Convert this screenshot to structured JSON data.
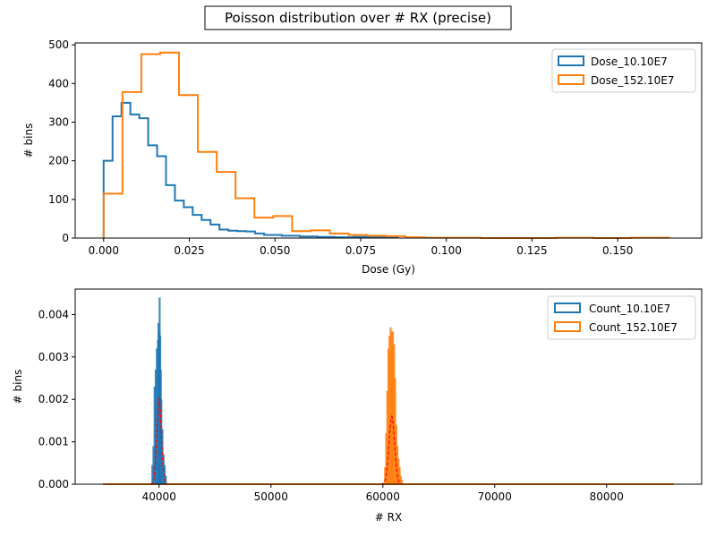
{
  "figure": {
    "suptitle": "Poisson distribution over # RX (precise)"
  },
  "colors": {
    "blue": "#1f77b4",
    "orange": "#ff7f0e",
    "fit": "#ff0000"
  },
  "chart_data": [
    {
      "type": "step-histogram",
      "title": "",
      "xlabel": "Dose (Gy)",
      "ylabel": "# bins",
      "xlim": [
        -0.0083,
        0.1745
      ],
      "ylim": [
        0,
        505
      ],
      "xticks": [
        0.0,
        0.025,
        0.05,
        0.075,
        0.1,
        0.125,
        0.15
      ],
      "xtick_labels": [
        "0.000",
        "0.025",
        "0.050",
        "0.075",
        "0.100",
        "0.125",
        "0.150"
      ],
      "yticks": [
        0,
        100,
        200,
        300,
        400,
        500
      ],
      "ytick_labels": [
        "0",
        "100",
        "200",
        "300",
        "400",
        "500"
      ],
      "legend_position": "upper-right",
      "grid": false,
      "series": [
        {
          "name": "Dose_10.10E7",
          "color": "#1f77b4",
          "bin_edges": [
            0.0,
            0.0026,
            0.0052,
            0.0078,
            0.0104,
            0.013,
            0.0156,
            0.0182,
            0.0208,
            0.0234,
            0.026,
            0.0286,
            0.0312,
            0.0338,
            0.0364,
            0.039,
            0.0416,
            0.0442,
            0.0468,
            0.052,
            0.0572,
            0.0624,
            0.0676,
            0.0728,
            0.078,
            0.0858
          ],
          "counts": [
            200,
            315,
            350,
            320,
            310,
            240,
            212,
            137,
            97,
            80,
            60,
            47,
            35,
            22,
            19,
            18,
            17,
            12,
            8,
            6,
            4,
            3,
            2,
            3,
            2
          ]
        },
        {
          "name": "Dose_152.10E7",
          "color": "#ff7f0e",
          "bin_edges": [
            0.0,
            0.0055,
            0.011,
            0.0165,
            0.022,
            0.0275,
            0.033,
            0.0385,
            0.044,
            0.0495,
            0.055,
            0.0605,
            0.066,
            0.0715,
            0.077,
            0.0825,
            0.088,
            0.0935,
            0.099,
            0.11,
            0.121,
            0.132,
            0.143,
            0.154,
            0.165
          ],
          "counts": [
            115,
            378,
            476,
            480,
            370,
            223,
            171,
            103,
            53,
            57,
            18,
            20,
            12,
            8,
            6,
            5,
            2,
            1,
            1,
            0,
            0,
            1,
            0,
            1
          ]
        }
      ]
    },
    {
      "type": "histogram-with-fit",
      "title": "",
      "xlabel": "# RX",
      "ylabel": "# bins",
      "xlim": [
        32500,
        88500
      ],
      "ylim": [
        0,
        0.0046
      ],
      "xticks": [
        40000,
        50000,
        60000,
        70000,
        80000
      ],
      "xtick_labels": [
        "40000",
        "50000",
        "60000",
        "70000",
        "80000"
      ],
      "yticks": [
        0,
        0.001,
        0.002,
        0.003,
        0.004
      ],
      "ytick_labels": [
        "0.000",
        "0.001",
        "0.002",
        "0.003",
        "0.004"
      ],
      "legend_position": "upper-right",
      "grid": false,
      "baseline_range": [
        35000,
        86000
      ],
      "series": [
        {
          "name": "Count_10.10E7",
          "color": "#1f77b4",
          "mean": 40000,
          "bins": [
            [
              39400,
              0.00045
            ],
            [
              39500,
              0.0009
            ],
            [
              39600,
              0.0023
            ],
            [
              39700,
              0.0027
            ],
            [
              39800,
              0.0032
            ],
            [
              39900,
              0.0034
            ],
            [
              39950,
              0.0038
            ],
            [
              40000,
              0.0036
            ],
            [
              40050,
              0.0044
            ],
            [
              40100,
              0.0035
            ],
            [
              40150,
              0.0027
            ],
            [
              40200,
              0.002
            ],
            [
              40300,
              0.0013
            ],
            [
              40400,
              0.0007
            ],
            [
              40500,
              0.00045
            ],
            [
              40600,
              0.0002
            ]
          ],
          "fit": {
            "mean": 40000,
            "sigma": 200,
            "peak": 0.002
          }
        },
        {
          "name": "Count_152.10E7",
          "color": "#ff7f0e",
          "mean": 60800,
          "bins": [
            [
              60200,
              0.0004
            ],
            [
              60300,
              0.0012
            ],
            [
              60400,
              0.0022
            ],
            [
              60500,
              0.0032
            ],
            [
              60600,
              0.0035
            ],
            [
              60700,
              0.0037
            ],
            [
              60800,
              0.0036
            ],
            [
              60850,
              0.0031
            ],
            [
              60900,
              0.0036
            ],
            [
              61000,
              0.0033
            ],
            [
              61100,
              0.0025
            ],
            [
              61200,
              0.0014
            ],
            [
              61300,
              0.0009
            ],
            [
              61400,
              0.0006
            ],
            [
              61500,
              0.0004
            ],
            [
              61600,
              0.0002
            ],
            [
              61700,
              0.0001
            ]
          ],
          "fit": {
            "mean": 60800,
            "sigma": 250,
            "peak": 0.0016
          }
        }
      ]
    }
  ]
}
